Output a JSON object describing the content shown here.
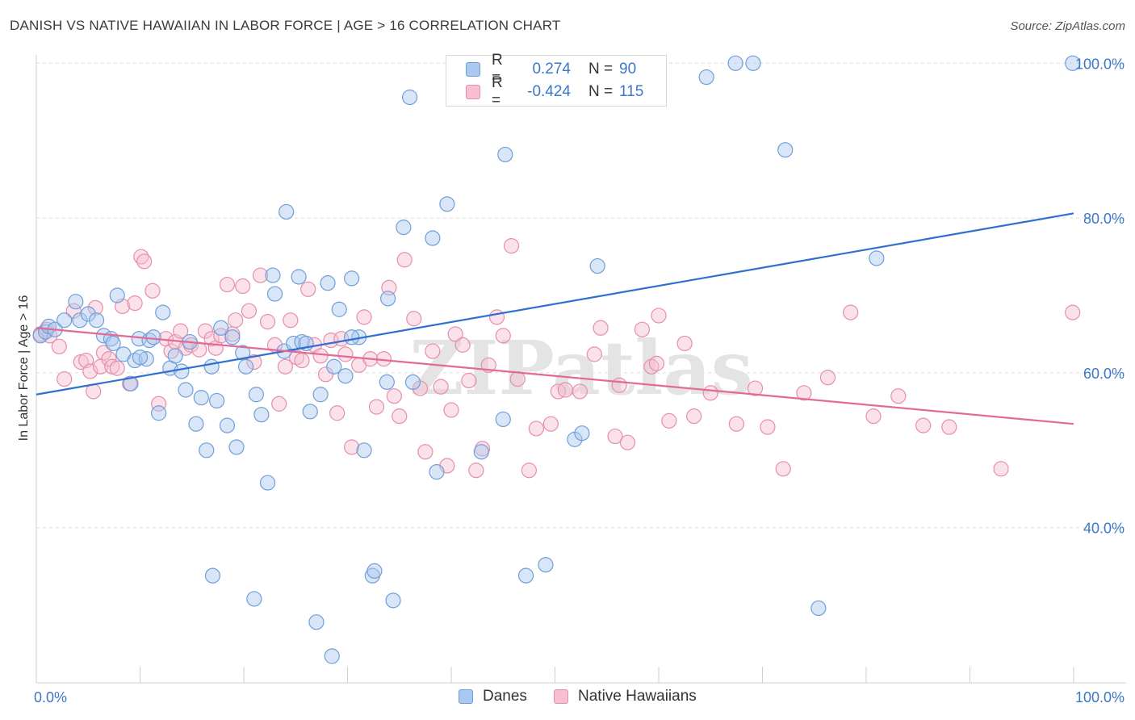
{
  "header": {
    "title": "DANISH VS NATIVE HAWAIIAN IN LABOR FORCE | AGE > 16 CORRELATION CHART",
    "source": "Source: ZipAtlas.com"
  },
  "legend_top": [
    {
      "r_label": "R =",
      "r_value": "0.274",
      "n_label": "N =",
      "n_value": "90",
      "fill": "#aac8f0",
      "stroke": "#6f9fd8"
    },
    {
      "r_label": "R =",
      "r_value": "-0.424",
      "n_label": "N =",
      "n_value": "115",
      "fill": "#f7bfd0",
      "stroke": "#e58fab"
    }
  ],
  "legend_bottom": [
    {
      "label": "Danes",
      "fill": "#aac8f0",
      "stroke": "#6f9fd8"
    },
    {
      "label": "Native Hawaiians",
      "fill": "#f7bfd0",
      "stroke": "#e58fab"
    }
  ],
  "watermark": "ZIPatlas",
  "colors": {
    "danes_point_fill": "rgba(170,200,240,0.45)",
    "danes_point_stroke": "#6f9fd8",
    "danes_line": "#2f6fcf",
    "hawaiians_point_fill": "rgba(247,191,208,0.45)",
    "hawaiians_point_stroke": "#e58fab",
    "hawaiians_line": "#e36a97",
    "tick_label": "#3a78c9",
    "grid": "#dcdcdc"
  },
  "chart_data": {
    "type": "scatter",
    "title": "DANISH VS NATIVE HAWAIIAN IN LABOR FORCE | AGE > 16 CORRELATION CHART",
    "xlabel": "",
    "ylabel": "In Labor Force | Age > 16",
    "xlim": [
      0,
      100
    ],
    "ylim": [
      20,
      102
    ],
    "x_tick_labels": [
      "0.0%",
      "100.0%"
    ],
    "y_ticks": [
      40,
      60,
      80,
      100
    ],
    "y_tick_labels": [
      "40.0%",
      "60.0%",
      "80.0%",
      "100.0%"
    ],
    "grid": "horizontal dashed",
    "legend": "top-center and bottom",
    "series": [
      {
        "name": "Danes",
        "R": 0.274,
        "N": 90,
        "trend": {
          "x": [
            0,
            100
          ],
          "y": [
            57.2,
            80.6
          ]
        },
        "points": [
          [
            0.4,
            64.8
          ],
          [
            0.9,
            65.3
          ],
          [
            1.2,
            66.0
          ],
          [
            1.8,
            65.6
          ],
          [
            2.7,
            66.8
          ],
          [
            3.8,
            69.2
          ],
          [
            4.2,
            66.8
          ],
          [
            5.0,
            67.6
          ],
          [
            5.8,
            66.8
          ],
          [
            6.5,
            64.8
          ],
          [
            7.2,
            64.4
          ],
          [
            7.4,
            63.8
          ],
          [
            7.8,
            70.0
          ],
          [
            8.4,
            62.4
          ],
          [
            9.1,
            58.6
          ],
          [
            9.5,
            61.6
          ],
          [
            9.9,
            64.4
          ],
          [
            10.6,
            61.8
          ],
          [
            10.9,
            64.2
          ],
          [
            11.3,
            64.6
          ],
          [
            11.8,
            54.8
          ],
          [
            12.2,
            67.8
          ],
          [
            12.9,
            60.6
          ],
          [
            13.4,
            62.2
          ],
          [
            14.0,
            60.2
          ],
          [
            14.4,
            57.8
          ],
          [
            14.8,
            64.0
          ],
          [
            15.4,
            53.4
          ],
          [
            15.9,
            56.8
          ],
          [
            16.4,
            50.0
          ],
          [
            16.9,
            60.8
          ],
          [
            17.4,
            56.4
          ],
          [
            17.8,
            65.8
          ],
          [
            18.4,
            53.2
          ],
          [
            18.9,
            64.6
          ],
          [
            19.3,
            50.4
          ],
          [
            19.9,
            62.6
          ],
          [
            20.2,
            60.8
          ],
          [
            21.2,
            57.2
          ],
          [
            21.7,
            54.6
          ],
          [
            22.3,
            45.8
          ],
          [
            22.8,
            72.6
          ],
          [
            23.0,
            70.2
          ],
          [
            23.9,
            62.8
          ],
          [
            24.8,
            63.8
          ],
          [
            25.3,
            72.4
          ],
          [
            25.6,
            64.0
          ],
          [
            26.0,
            63.8
          ],
          [
            26.4,
            55.0
          ],
          [
            27.4,
            57.2
          ],
          [
            28.1,
            71.6
          ],
          [
            28.7,
            60.8
          ],
          [
            29.2,
            68.2
          ],
          [
            29.8,
            59.6
          ],
          [
            30.4,
            72.2
          ],
          [
            31.1,
            64.6
          ],
          [
            31.6,
            50.0
          ],
          [
            32.4,
            33.8
          ],
          [
            32.6,
            34.4
          ],
          [
            33.8,
            58.8
          ],
          [
            33.9,
            69.6
          ],
          [
            34.4,
            30.6
          ],
          [
            35.4,
            78.8
          ],
          [
            36.3,
            58.8
          ],
          [
            38.2,
            77.4
          ],
          [
            38.6,
            47.2
          ],
          [
            39.6,
            81.8
          ],
          [
            42.9,
            49.8
          ],
          [
            45.0,
            54.0
          ],
          [
            45.2,
            88.2
          ],
          [
            49.1,
            35.2
          ],
          [
            51.9,
            51.4
          ],
          [
            52.6,
            52.2
          ],
          [
            54.1,
            73.8
          ],
          [
            64.6,
            98.2
          ],
          [
            67.4,
            100.0
          ],
          [
            69.1,
            100.0
          ],
          [
            72.2,
            88.8
          ],
          [
            75.4,
            29.6
          ],
          [
            81.0,
            74.8
          ],
          [
            99.9,
            100.0
          ],
          [
            36.0,
            95.6
          ],
          [
            30.4,
            64.6
          ],
          [
            24.1,
            80.8
          ],
          [
            17.0,
            33.8
          ],
          [
            10.0,
            62.0
          ],
          [
            27.0,
            27.8
          ],
          [
            28.5,
            23.4
          ],
          [
            21.0,
            30.8
          ],
          [
            47.2,
            33.8
          ]
        ]
      },
      {
        "name": "Native Hawaiians",
        "R": -0.424,
        "N": 115,
        "trend": {
          "x": [
            0,
            100
          ],
          "y": [
            65.8,
            53.4
          ]
        },
        "points": [
          [
            0.4,
            65.0
          ],
          [
            1.0,
            65.6
          ],
          [
            1.3,
            64.8
          ],
          [
            2.2,
            63.4
          ],
          [
            2.7,
            59.2
          ],
          [
            3.6,
            68.0
          ],
          [
            4.3,
            61.4
          ],
          [
            4.8,
            61.6
          ],
          [
            5.2,
            60.2
          ],
          [
            5.7,
            68.4
          ],
          [
            6.2,
            60.8
          ],
          [
            6.5,
            62.6
          ],
          [
            7.0,
            61.8
          ],
          [
            7.3,
            60.8
          ],
          [
            7.8,
            60.6
          ],
          [
            8.3,
            68.6
          ],
          [
            9.0,
            58.6
          ],
          [
            9.5,
            69.0
          ],
          [
            10.1,
            75.0
          ],
          [
            10.4,
            74.4
          ],
          [
            11.2,
            70.6
          ],
          [
            11.8,
            56.0
          ],
          [
            12.5,
            64.4
          ],
          [
            13.0,
            62.8
          ],
          [
            13.4,
            64.0
          ],
          [
            13.9,
            65.4
          ],
          [
            14.4,
            63.2
          ],
          [
            14.9,
            63.6
          ],
          [
            15.7,
            63.0
          ],
          [
            16.3,
            65.4
          ],
          [
            16.9,
            64.4
          ],
          [
            17.3,
            63.2
          ],
          [
            17.8,
            64.8
          ],
          [
            18.4,
            71.4
          ],
          [
            18.9,
            65.0
          ],
          [
            19.2,
            66.8
          ],
          [
            19.9,
            71.2
          ],
          [
            20.5,
            68.0
          ],
          [
            21.0,
            61.4
          ],
          [
            21.6,
            72.6
          ],
          [
            22.3,
            66.6
          ],
          [
            23.0,
            63.6
          ],
          [
            23.4,
            56.0
          ],
          [
            24.0,
            60.8
          ],
          [
            24.5,
            66.8
          ],
          [
            25.1,
            62.0
          ],
          [
            25.6,
            61.6
          ],
          [
            26.2,
            70.8
          ],
          [
            26.8,
            63.6
          ],
          [
            27.4,
            62.2
          ],
          [
            27.9,
            59.8
          ],
          [
            28.4,
            64.2
          ],
          [
            29.0,
            54.8
          ],
          [
            29.4,
            64.4
          ],
          [
            29.8,
            62.4
          ],
          [
            30.4,
            50.4
          ],
          [
            31.1,
            61.0
          ],
          [
            31.6,
            67.2
          ],
          [
            32.2,
            61.8
          ],
          [
            32.8,
            55.6
          ],
          [
            33.5,
            61.8
          ],
          [
            34.0,
            71.0
          ],
          [
            34.5,
            57.0
          ],
          [
            35.0,
            54.4
          ],
          [
            35.5,
            74.6
          ],
          [
            36.4,
            67.0
          ],
          [
            37.0,
            58.0
          ],
          [
            37.5,
            49.8
          ],
          [
            38.2,
            62.8
          ],
          [
            39.0,
            58.2
          ],
          [
            39.6,
            48.0
          ],
          [
            40.4,
            65.0
          ],
          [
            41.1,
            63.6
          ],
          [
            41.7,
            59.0
          ],
          [
            42.4,
            47.4
          ],
          [
            43.0,
            50.2
          ],
          [
            43.6,
            61.0
          ],
          [
            44.4,
            67.2
          ],
          [
            45.0,
            64.8
          ],
          [
            45.8,
            76.4
          ],
          [
            46.4,
            59.2
          ],
          [
            47.5,
            47.4
          ],
          [
            48.2,
            52.8
          ],
          [
            49.6,
            53.4
          ],
          [
            50.3,
            57.6
          ],
          [
            51.0,
            57.8
          ],
          [
            52.4,
            57.6
          ],
          [
            53.8,
            62.4
          ],
          [
            54.4,
            65.8
          ],
          [
            55.8,
            51.8
          ],
          [
            56.2,
            58.4
          ],
          [
            57.0,
            51.0
          ],
          [
            58.4,
            65.6
          ],
          [
            59.3,
            60.8
          ],
          [
            59.8,
            61.2
          ],
          [
            61.0,
            53.8
          ],
          [
            62.5,
            63.8
          ],
          [
            63.4,
            54.4
          ],
          [
            65.0,
            57.4
          ],
          [
            67.5,
            53.4
          ],
          [
            69.3,
            58.0
          ],
          [
            70.5,
            53.0
          ],
          [
            72.0,
            47.6
          ],
          [
            74.0,
            57.4
          ],
          [
            76.3,
            59.4
          ],
          [
            78.5,
            67.8
          ],
          [
            80.7,
            54.4
          ],
          [
            83.1,
            57.0
          ],
          [
            85.5,
            53.2
          ],
          [
            88.0,
            53.0
          ],
          [
            93.0,
            47.6
          ],
          [
            99.9,
            67.8
          ],
          [
            5.5,
            57.6
          ],
          [
            60.0,
            67.4
          ],
          [
            40.0,
            55.2
          ]
        ]
      }
    ]
  }
}
